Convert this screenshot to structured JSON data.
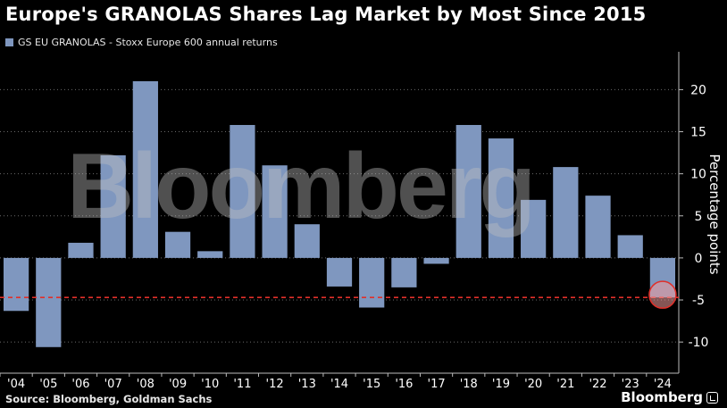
{
  "title": "Europe's GRANOLAS Shares Lag Market by Most Since 2015",
  "legend": {
    "label": "GS EU GRANOLAS - Stoxx Europe 600 annual returns",
    "color": "#7f97bf"
  },
  "source": "Source: Bloomberg, Goldman Sachs",
  "brand": "Bloomberg",
  "watermark": "Bloomberg",
  "colors": {
    "bar": "#7f97bf",
    "reference_line": "#e0302a",
    "highlight": "#f29a9a",
    "background": "#000000"
  },
  "chart_data": {
    "type": "bar",
    "categories": [
      "'04",
      "'05",
      "'06",
      "'07",
      "'08",
      "'09",
      "'10",
      "'11",
      "'12",
      "'13",
      "'14",
      "'15",
      "'16",
      "'17",
      "'18",
      "'19",
      "'20",
      "'21",
      "'22",
      "'23",
      "'24"
    ],
    "series": [
      {
        "name": "GS EU GRANOLAS - Stoxx Europe 600 annual returns",
        "values": [
          -6.3,
          -10.6,
          1.8,
          12.2,
          21.0,
          3.1,
          0.8,
          15.8,
          11.0,
          4.0,
          -3.4,
          -5.9,
          -3.5,
          -0.7,
          15.8,
          14.2,
          6.9,
          10.8,
          7.4,
          2.7,
          -4.7
        ]
      }
    ],
    "ylabel": "Percentage points",
    "ylim": [
      -13.7,
      24.5
    ],
    "yticks": [
      20,
      15,
      10,
      5,
      0,
      -5,
      -10
    ],
    "ytick_labels": [
      "20",
      "15",
      "10",
      "5",
      "0",
      "-5",
      "-10"
    ],
    "reference_line": -4.7,
    "highlight_category": "'24",
    "grid": true
  }
}
